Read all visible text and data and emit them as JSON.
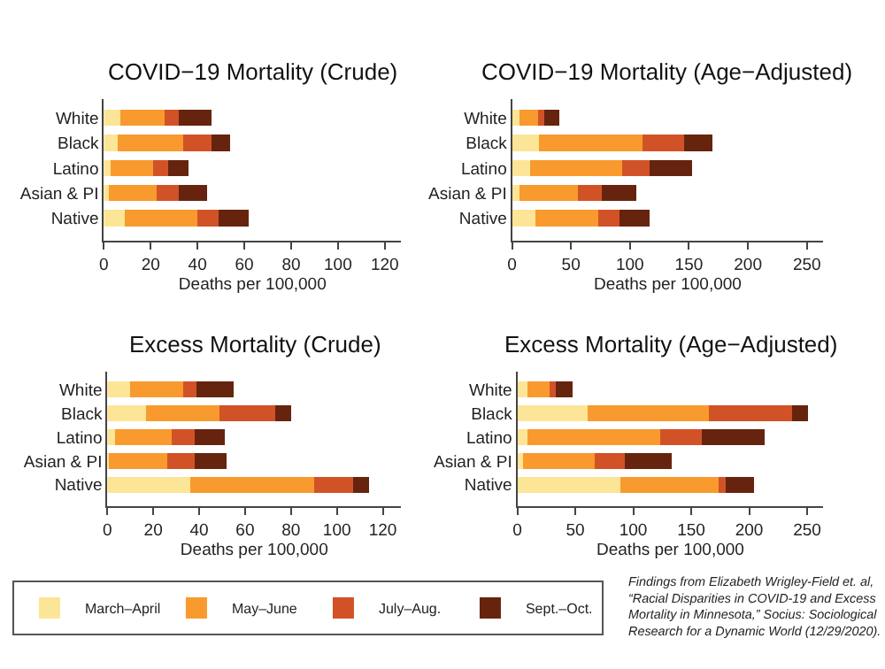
{
  "chart_data": [
    {
      "type": "bar",
      "orientation": "horizontal",
      "stacked": true,
      "title": "COVID−19 Mortality (Crude)",
      "xlabel": "Deaths per 100,000",
      "categories": [
        "White",
        "Black",
        "Latino",
        "Asian & PI",
        "Native"
      ],
      "xlim": [
        0,
        127
      ],
      "xticks": [
        0,
        20,
        40,
        60,
        80,
        100,
        120
      ],
      "legend": "bottom",
      "series": [
        {
          "name": "March–April",
          "color": "#fde597",
          "values": [
            7,
            6,
            3,
            2,
            9
          ]
        },
        {
          "name": "May–June",
          "color": "#f89a2e",
          "values": [
            19,
            28,
            18,
            20.5,
            31
          ]
        },
        {
          "name": "July–Aug.",
          "color": "#d25227",
          "values": [
            6,
            12,
            6.5,
            9.5,
            9
          ]
        },
        {
          "name": "Sept.–Oct.",
          "color": "#66240f",
          "values": [
            14,
            8,
            8.5,
            12,
            13
          ]
        }
      ]
    },
    {
      "type": "bar",
      "orientation": "horizontal",
      "stacked": true,
      "title": "COVID−19 Mortality (Age−Adjusted)",
      "xlabel": "Deaths per 100,000",
      "categories": [
        "White",
        "Black",
        "Latino",
        "Asian & PI",
        "Native"
      ],
      "xlim": [
        0,
        264
      ],
      "xticks": [
        0,
        50,
        100,
        150,
        200,
        250
      ],
      "series": [
        {
          "color": "#fde597",
          "values": [
            6,
            23,
            15,
            6,
            20
          ]
        },
        {
          "color": "#f89a2e",
          "values": [
            16,
            88,
            78,
            50,
            53
          ]
        },
        {
          "color": "#d25227",
          "values": [
            5,
            35,
            24,
            20,
            18
          ]
        },
        {
          "color": "#66240f",
          "values": [
            13,
            24,
            36,
            29,
            26
          ]
        }
      ]
    },
    {
      "type": "bar",
      "orientation": "horizontal",
      "stacked": true,
      "title": "Excess Mortality (Crude)",
      "xlabel": "Deaths per 100,000",
      "categories": [
        "White",
        "Black",
        "Latino",
        "Asian & PI",
        "Native"
      ],
      "xlim": [
        0,
        128
      ],
      "xticks": [
        0,
        20,
        40,
        60,
        80,
        100,
        120
      ],
      "series": [
        {
          "color": "#fde597",
          "values": [
            10,
            17,
            3.5,
            0.5,
            36
          ]
        },
        {
          "color": "#f89a2e",
          "values": [
            23,
            32,
            24.5,
            25.5,
            54
          ]
        },
        {
          "color": "#d25227",
          "values": [
            6,
            24,
            10,
            12,
            17
          ]
        },
        {
          "color": "#66240f",
          "values": [
            16,
            7,
            13,
            14,
            7
          ]
        }
      ]
    },
    {
      "type": "bar",
      "orientation": "horizontal",
      "stacked": true,
      "title": "Excess Mortality (Age−Adjusted)",
      "xlabel": "Deaths per 100,000",
      "categories": [
        "White",
        "Black",
        "Latino",
        "Asian & PI",
        "Native"
      ],
      "xlim": [
        0,
        264
      ],
      "xticks": [
        0,
        50,
        100,
        150,
        200,
        250
      ],
      "annotations": [
        "Findings from Elizabeth Wrigley-Field et. al,\n“Racial Disparities in COVID-19 and Excess\nMortality in Minnesota,” Socius: Sociological\nResearch for a Dynamic World (12/29/2020)."
      ],
      "series": [
        {
          "color": "#fde597",
          "values": [
            9,
            61,
            9,
            5,
            89
          ]
        },
        {
          "color": "#f89a2e",
          "values": [
            19,
            104,
            114,
            62,
            85
          ]
        },
        {
          "color": "#d25227",
          "values": [
            5,
            72,
            36,
            26,
            6
          ]
        },
        {
          "color": "#66240f",
          "values": [
            15,
            14,
            54,
            40,
            24
          ]
        }
      ]
    }
  ]
}
